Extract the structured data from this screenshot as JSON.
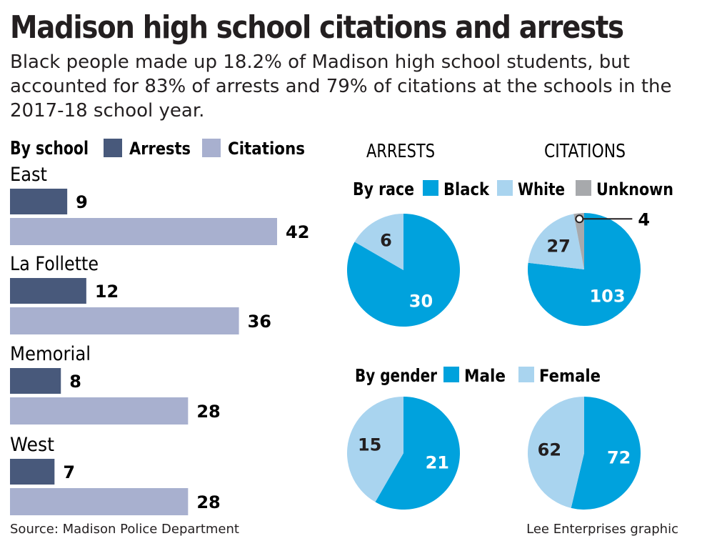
{
  "title": "Madison high school citations and arrests",
  "subtitle": "Black people made up 18.2% of Madison high school students, but accounted for 83% of arrests and 79% of citations at the schools in the 2017-18 school year.",
  "source": "Source: Madison Police Department",
  "credit": "Lee Enterprises graphic",
  "colors": {
    "arrests": "#48597b",
    "citations": "#a8b0cf",
    "black": "#00a2dd",
    "white": "#a9d4ef",
    "unknown": "#a7a9ac",
    "male": "#00a2dd",
    "female": "#a9d4ef"
  },
  "chart_data": [
    {
      "type": "bar",
      "legend_title": "By school",
      "categories": [
        "East",
        "La Follette",
        "Memorial",
        "West"
      ],
      "series": [
        {
          "name": "Arrests",
          "values": [
            9,
            12,
            8,
            7
          ]
        },
        {
          "name": "Citations",
          "values": [
            42,
            36,
            28,
            28
          ]
        }
      ],
      "orientation": "horizontal",
      "legend_position": "top"
    },
    {
      "type": "pie",
      "legend_title": "By race",
      "legend": [
        "Black",
        "White",
        "Unknown"
      ],
      "column_titles": [
        "ARRESTS",
        "CITATIONS"
      ],
      "pies": [
        {
          "slices": [
            {
              "name": "Black",
              "value": 30
            },
            {
              "name": "White",
              "value": 6
            }
          ]
        },
        {
          "slices": [
            {
              "name": "Black",
              "value": 103
            },
            {
              "name": "White",
              "value": 27
            },
            {
              "name": "Unknown",
              "value": 4
            }
          ]
        }
      ]
    },
    {
      "type": "pie",
      "legend_title": "By gender",
      "legend": [
        "Male",
        "Female"
      ],
      "pies": [
        {
          "slices": [
            {
              "name": "Male",
              "value": 21
            },
            {
              "name": "Female",
              "value": 15
            }
          ]
        },
        {
          "slices": [
            {
              "name": "Male",
              "value": 72
            },
            {
              "name": "Female",
              "value": 62
            }
          ]
        }
      ]
    }
  ]
}
